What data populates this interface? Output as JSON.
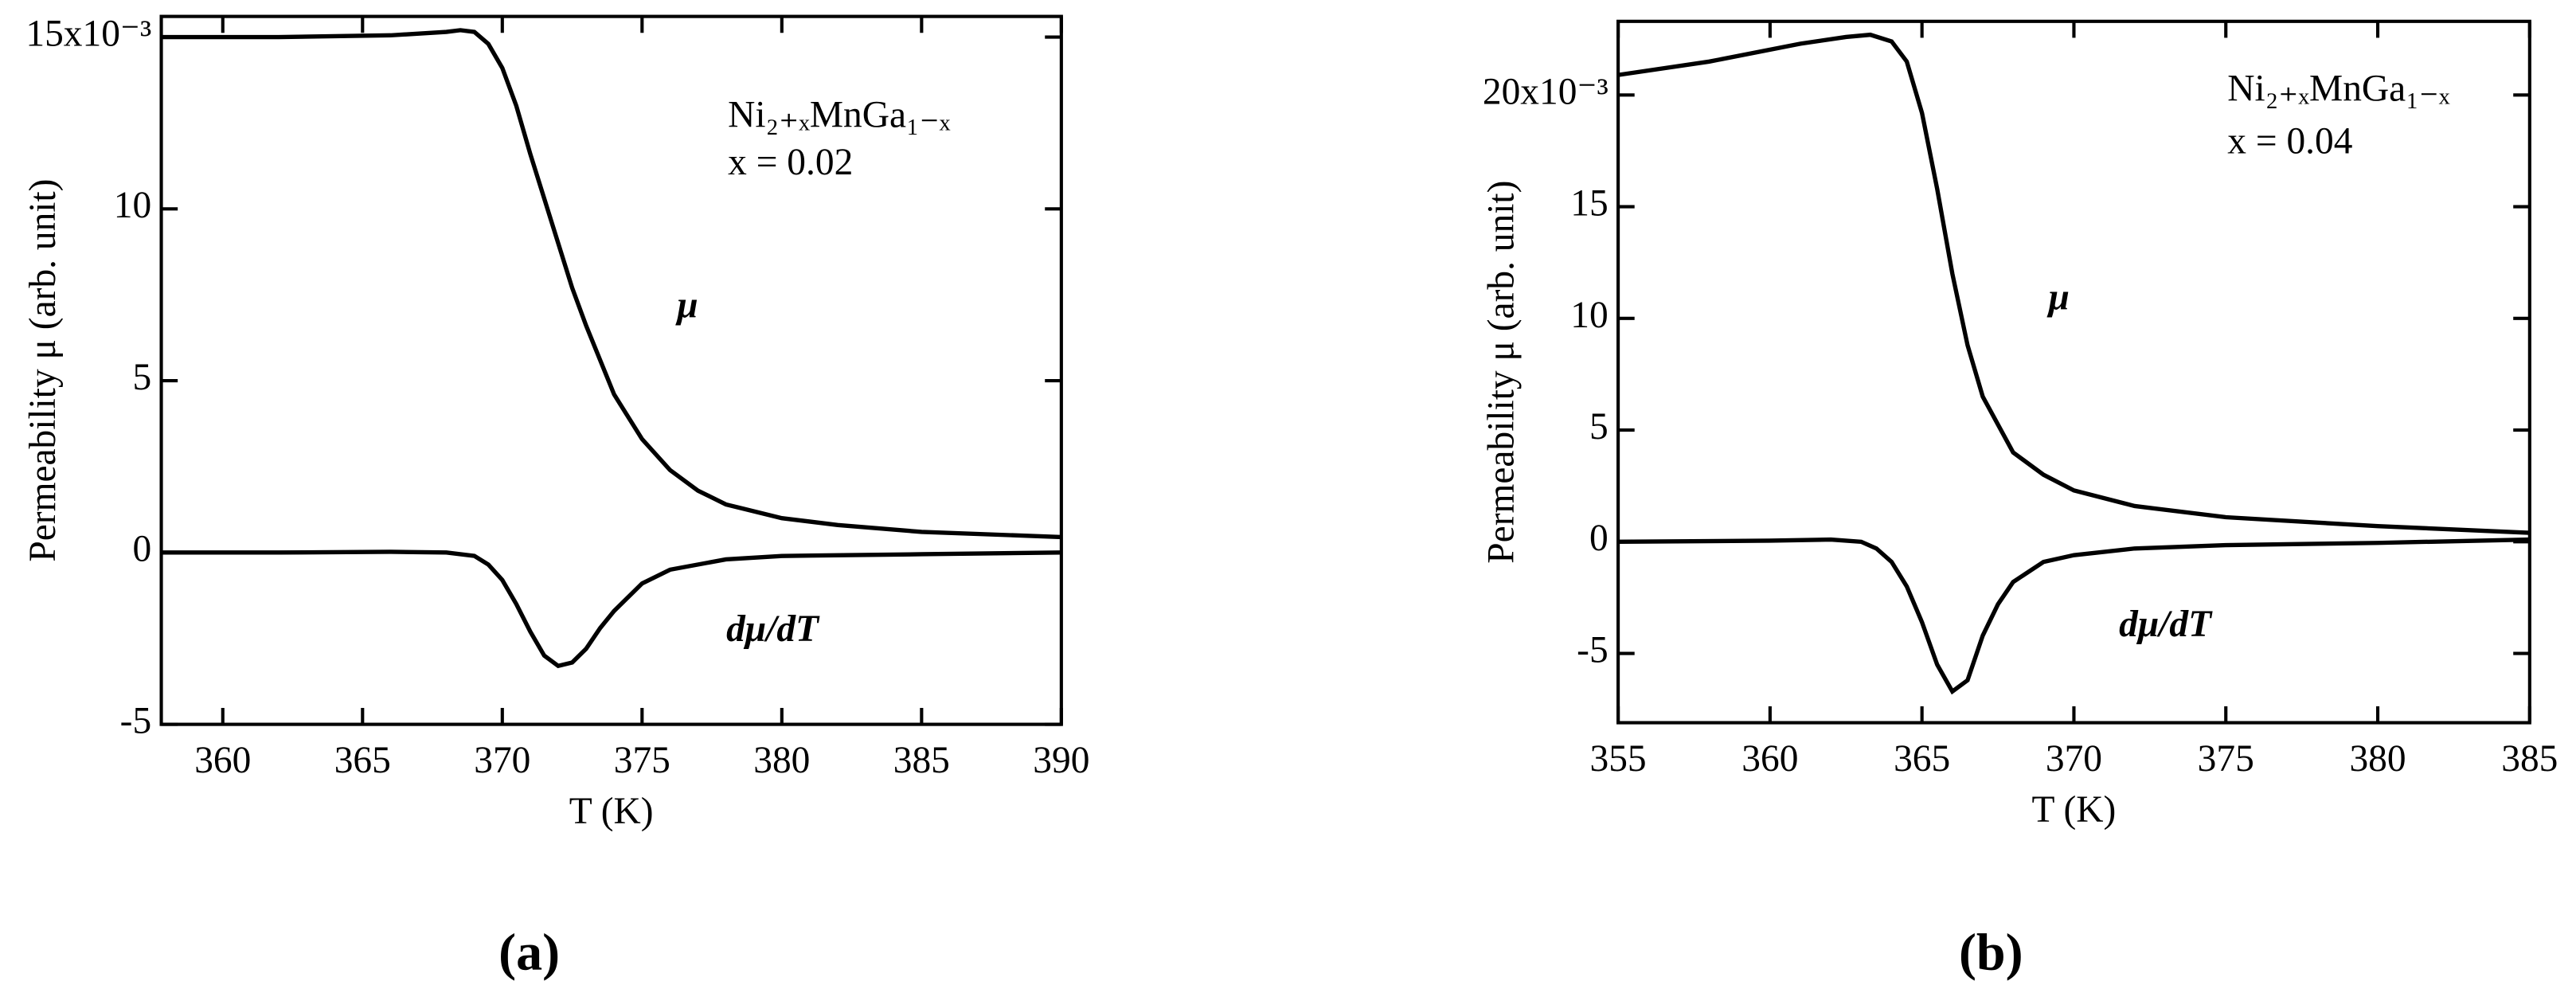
{
  "chart_data": [
    {
      "type": "line",
      "panel_label": "(a)",
      "xlabel": "T (K)",
      "ylabel": "Permeability μ (arb. unit)",
      "annotations": [
        "Ni₂₊ₓMnGa₁₋ₓ",
        "x = 0.02"
      ],
      "xlim": [
        357.8,
        390
      ],
      "xticks": [
        360,
        365,
        370,
        375,
        380,
        385,
        390
      ],
      "ylim": [
        -5,
        15.6
      ],
      "yticks": [
        -5,
        0,
        5,
        10,
        {
          "value": 15,
          "label": "15x10⁻³"
        }
      ],
      "series": [
        {
          "name": "μ",
          "color": "#000000",
          "x": [
            357.8,
            362,
            366,
            368,
            368.5,
            369,
            369.5,
            370,
            370.5,
            371,
            371.5,
            372,
            372.5,
            373,
            374,
            375,
            376,
            377,
            378,
            380,
            382,
            385,
            390
          ],
          "values": [
            15.0,
            15.0,
            15.05,
            15.15,
            15.2,
            15.15,
            14.8,
            14.1,
            13.0,
            11.6,
            10.3,
            9.0,
            7.7,
            6.6,
            4.6,
            3.3,
            2.4,
            1.8,
            1.4,
            1.0,
            0.8,
            0.6,
            0.45
          ]
        },
        {
          "name": "dμ/dT",
          "color": "#000000",
          "x": [
            357.8,
            362,
            366,
            368,
            369,
            369.5,
            370,
            370.5,
            371,
            371.5,
            372,
            372.5,
            373,
            373.5,
            374,
            375,
            376,
            378,
            380,
            385,
            390
          ],
          "values": [
            0,
            0,
            0.02,
            0,
            -0.1,
            -0.35,
            -0.8,
            -1.5,
            -2.3,
            -3.0,
            -3.3,
            -3.2,
            -2.8,
            -2.2,
            -1.7,
            -0.9,
            -0.5,
            -0.2,
            -0.1,
            -0.05,
            0
          ]
        }
      ]
    },
    {
      "type": "line",
      "panel_label": "(b)",
      "xlabel": "T (K)",
      "ylabel": "Permeability μ (arb. unit)",
      "annotations": [
        "Ni₂₊ₓMnGa₁₋ₓ",
        "x = 0.04"
      ],
      "xlim": [
        355,
        385
      ],
      "xticks": [
        355,
        360,
        365,
        370,
        375,
        380,
        385
      ],
      "ylim": [
        -8.1,
        23.3
      ],
      "yticks": [
        -5,
        0,
        5,
        10,
        15,
        {
          "value": 20,
          "label": "20x10⁻³"
        }
      ],
      "series": [
        {
          "name": "μ",
          "color": "#000000",
          "x": [
            355,
            358,
            361,
            362.5,
            363.3,
            364,
            364.5,
            365,
            365.5,
            366,
            366.5,
            367,
            368,
            369,
            370,
            372,
            375,
            380,
            385
          ],
          "values": [
            20.9,
            21.5,
            22.3,
            22.6,
            22.7,
            22.4,
            21.5,
            19.2,
            15.8,
            12.0,
            8.8,
            6.5,
            4.0,
            3.0,
            2.3,
            1.6,
            1.1,
            0.7,
            0.4
          ]
        },
        {
          "name": "dμ/dT",
          "color": "#000000",
          "x": [
            355,
            360,
            362,
            363,
            363.5,
            364,
            364.5,
            365,
            365.5,
            366,
            366.5,
            367,
            367.5,
            368,
            369,
            370,
            372,
            375,
            380,
            385
          ],
          "values": [
            0,
            0.05,
            0.1,
            0,
            -0.3,
            -0.9,
            -2.0,
            -3.6,
            -5.5,
            -6.7,
            -6.2,
            -4.2,
            -2.8,
            -1.8,
            -0.9,
            -0.6,
            -0.3,
            -0.15,
            -0.05,
            0.1
          ]
        }
      ]
    }
  ]
}
